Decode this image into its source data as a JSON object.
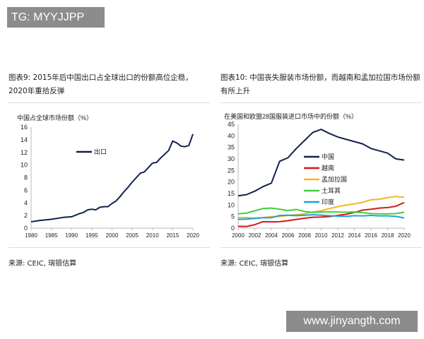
{
  "watermark_top": "TG: MYYJJPP",
  "watermark_bottom": "www.jinyangth.com",
  "left": {
    "title": "图表9: 2015年后中国出口占全球出口的份额高位企稳，2020年重拾反弹",
    "source": "来源: CEIC, 瑞银估算"
  },
  "right": {
    "title": "图表10: 中国丧失服装市场份额，而越南和孟加拉国市场份额有所上升",
    "source": "来源: CEIC, 瑞银估算"
  },
  "chart_data": [
    {
      "type": "line",
      "ylabel": "中国占全球市场份额（%）",
      "ylim": [
        0,
        16
      ],
      "yticks": [
        "0",
        "2",
        "4",
        "6",
        "8",
        "10",
        "12",
        "14",
        "16"
      ],
      "xlim": [
        1980,
        2020
      ],
      "xticks": [
        "1980",
        "1985",
        "1990",
        "1995",
        "2000",
        "2005",
        "2010",
        "2015",
        "2020"
      ],
      "legend": "upper-center",
      "x": [
        1980,
        1982,
        1985,
        1988,
        1990,
        1992,
        1993,
        1994,
        1995,
        1996,
        1997,
        1998,
        1999,
        2000,
        2001,
        2002,
        2003,
        2004,
        2005,
        2006,
        2007,
        2008,
        2009,
        2010,
        2011,
        2012,
        2013,
        2014,
        2015,
        2016,
        2017,
        2018,
        2019,
        2020
      ],
      "series": [
        {
          "name": "出口",
          "color": "#14214f",
          "values": [
            1.0,
            1.2,
            1.4,
            1.7,
            1.8,
            2.3,
            2.5,
            2.9,
            3.0,
            2.9,
            3.3,
            3.4,
            3.4,
            3.9,
            4.3,
            5.0,
            5.8,
            6.5,
            7.3,
            8.0,
            8.7,
            8.9,
            9.6,
            10.3,
            10.4,
            11.1,
            11.7,
            12.3,
            13.8,
            13.5,
            13.0,
            12.9,
            13.1,
            14.9
          ]
        }
      ]
    },
    {
      "type": "line",
      "ylabel": "在美国和欧盟28国服装进口市场中的份额（%）",
      "ylim": [
        0,
        45
      ],
      "yticks": [
        "0",
        "5",
        "10",
        "15",
        "20",
        "25",
        "30",
        "35",
        "40",
        "45"
      ],
      "xlim": [
        2000,
        2020
      ],
      "xticks": [
        "2000",
        "2002",
        "2004",
        "2006",
        "2008",
        "2010",
        "2012",
        "2014",
        "2016",
        "2018",
        "2020"
      ],
      "legend": "center",
      "x": [
        2000,
        2001,
        2002,
        2003,
        2004,
        2005,
        2006,
        2007,
        2008,
        2009,
        2010,
        2011,
        2012,
        2013,
        2014,
        2015,
        2016,
        2017,
        2018,
        2019,
        2020
      ],
      "series": [
        {
          "name": "中国",
          "color": "#14214f",
          "values": [
            14,
            14.5,
            16,
            18,
            19.5,
            29,
            30.5,
            34.5,
            38,
            41.5,
            42.8,
            41,
            39.5,
            38.5,
            37.5,
            36.5,
            34.5,
            33.5,
            32.5,
            30,
            29.5
          ]
        },
        {
          "name": "越南",
          "color": "#d7191c",
          "values": [
            0.8,
            0.7,
            1.5,
            2.8,
            2.7,
            2.8,
            3.2,
            3.8,
            4.3,
            4.7,
            4.8,
            5.0,
            5.5,
            6.0,
            6.8,
            7.8,
            8.2,
            8.7,
            8.9,
            9.5,
            11.1
          ]
        },
        {
          "name": "孟加拉国",
          "color": "#f2b822",
          "values": [
            4.5,
            4.6,
            4.3,
            4.5,
            5,
            5,
            5.5,
            5.8,
            6.2,
            7,
            7.5,
            8.5,
            9.3,
            10,
            10.5,
            11.2,
            12.3,
            12.5,
            13.2,
            13.7,
            13.4
          ]
        },
        {
          "name": "土耳其",
          "color": "#3ed13e",
          "values": [
            6.2,
            6.5,
            7.5,
            8.5,
            8.7,
            8.2,
            7.6,
            8.1,
            7.2,
            6.8,
            7,
            7,
            7,
            6.9,
            7,
            6.7,
            6.3,
            6.2,
            6.2,
            6.3,
            6.9
          ]
        },
        {
          "name": "印度",
          "color": "#1aa3d9",
          "values": [
            3.8,
            3.9,
            4.2,
            4.5,
            4.5,
            5.5,
            5.6,
            5.4,
            5.6,
            5.8,
            5.6,
            5.4,
            5.2,
            5.1,
            5.4,
            5.3,
            5.5,
            5.3,
            5.3,
            5.1,
            4.4
          ]
        }
      ]
    }
  ]
}
